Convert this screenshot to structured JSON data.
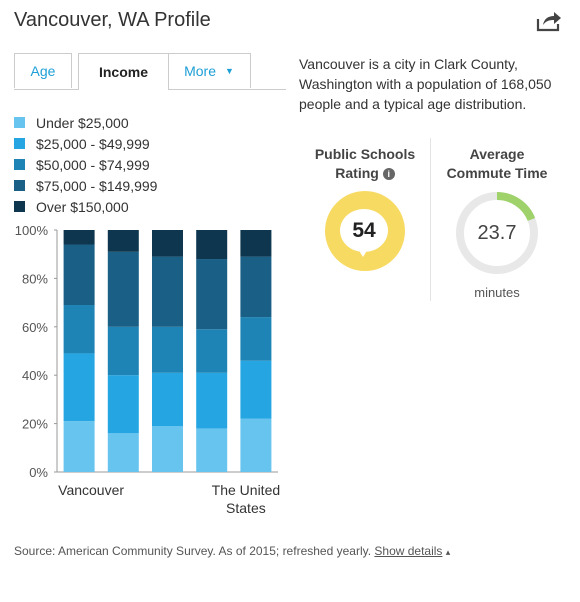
{
  "title": "Vancouver, WA Profile",
  "tabs": [
    {
      "label": "Age"
    },
    {
      "label": "Income"
    },
    {
      "label": "More"
    }
  ],
  "description": "Vancouver is a city in Clark County, Washington with a population of 168,050 people and a typical age distribution.",
  "schools": {
    "title_line1": "Public Schools",
    "title_line2": "Rating",
    "info_glyph": "i",
    "value": "54",
    "color": "#f7da62"
  },
  "commute": {
    "title_line1": "Average",
    "title_line2": "Commute Time",
    "value": "23.7",
    "unit": "minutes",
    "ring_fraction": 0.19,
    "ring_color": "#9fd26a",
    "track_color": "#e8e8e8"
  },
  "source": {
    "text": "Source: American Community Survey. As of 2015; refreshed yearly.",
    "link": "Show details",
    "caret": "▴"
  },
  "chart_data": {
    "type": "bar",
    "stacked": true,
    "ylim": [
      0,
      100
    ],
    "y_ticks": [
      "0%",
      "20%",
      "40%",
      "60%",
      "80%",
      "100%"
    ],
    "categories": [
      "Vancouver",
      "",
      "",
      "",
      "The United States"
    ],
    "x_labels": [
      {
        "lines": [
          "Vancouver"
        ]
      },
      {
        "lines": []
      },
      {
        "lines": []
      },
      {
        "lines": []
      },
      {
        "lines": [
          "The United",
          "States"
        ]
      }
    ],
    "series": [
      {
        "name": "Under $25,000",
        "color": "#67c4ee",
        "values": [
          21,
          16,
          19,
          18,
          22
        ]
      },
      {
        "name": "$25,000 - $49,999",
        "color": "#25a6e3",
        "values": [
          28,
          24,
          22,
          23,
          24
        ]
      },
      {
        "name": "$50,000 - $74,999",
        "color": "#1d84b5",
        "values": [
          20,
          20,
          19,
          18,
          18
        ]
      },
      {
        "name": "$75,000 - $149,999",
        "color": "#195f86",
        "values": [
          25,
          31,
          29,
          29,
          25
        ]
      },
      {
        "name": "Over $150,000",
        "color": "#0e364e",
        "values": [
          6,
          9,
          11,
          12,
          11
        ]
      }
    ]
  }
}
